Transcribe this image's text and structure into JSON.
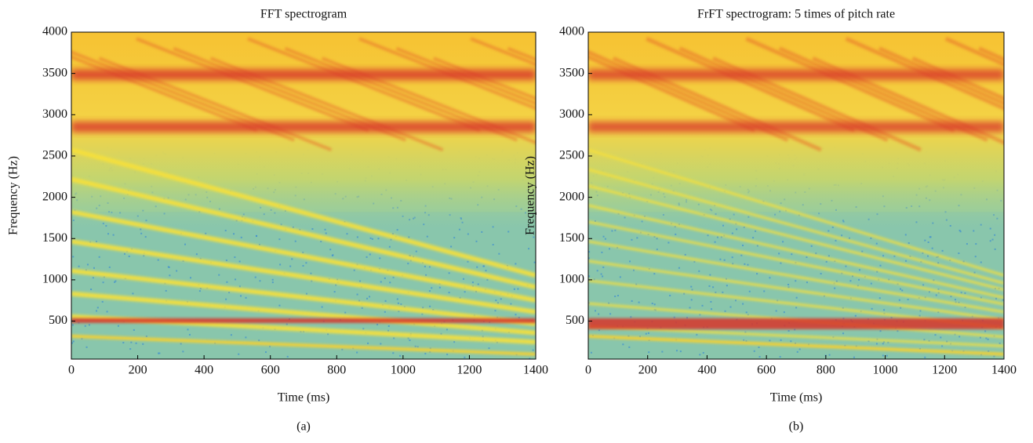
{
  "chart_data": [
    {
      "type": "spectrogram",
      "title": "FFT spectrogram",
      "xlabel": "Time (ms)",
      "ylabel": "Frequency (Hz)",
      "caption": "(a)",
      "xlim": [
        0,
        1400
      ],
      "xticks": [
        0,
        200,
        400,
        600,
        800,
        1000,
        1200,
        1400
      ],
      "ylim": [
        40,
        4000
      ],
      "yticks": [
        500,
        1000,
        1500,
        2000,
        2500,
        3000,
        3500,
        4000
      ]
    },
    {
      "type": "spectrogram",
      "title": "FrFT spectrogram: 5 times of pitch rate",
      "xlabel": "Time (ms)",
      "ylabel": "Frequency (Hz)",
      "caption": "(b)",
      "xlim": [
        0,
        1400
      ],
      "xticks": [
        0,
        200,
        400,
        600,
        800,
        1000,
        1200,
        1400
      ],
      "ylim": [
        40,
        4000
      ],
      "yticks": [
        500,
        1000,
        1500,
        2000,
        2500,
        3000,
        3500,
        4000
      ]
    }
  ]
}
